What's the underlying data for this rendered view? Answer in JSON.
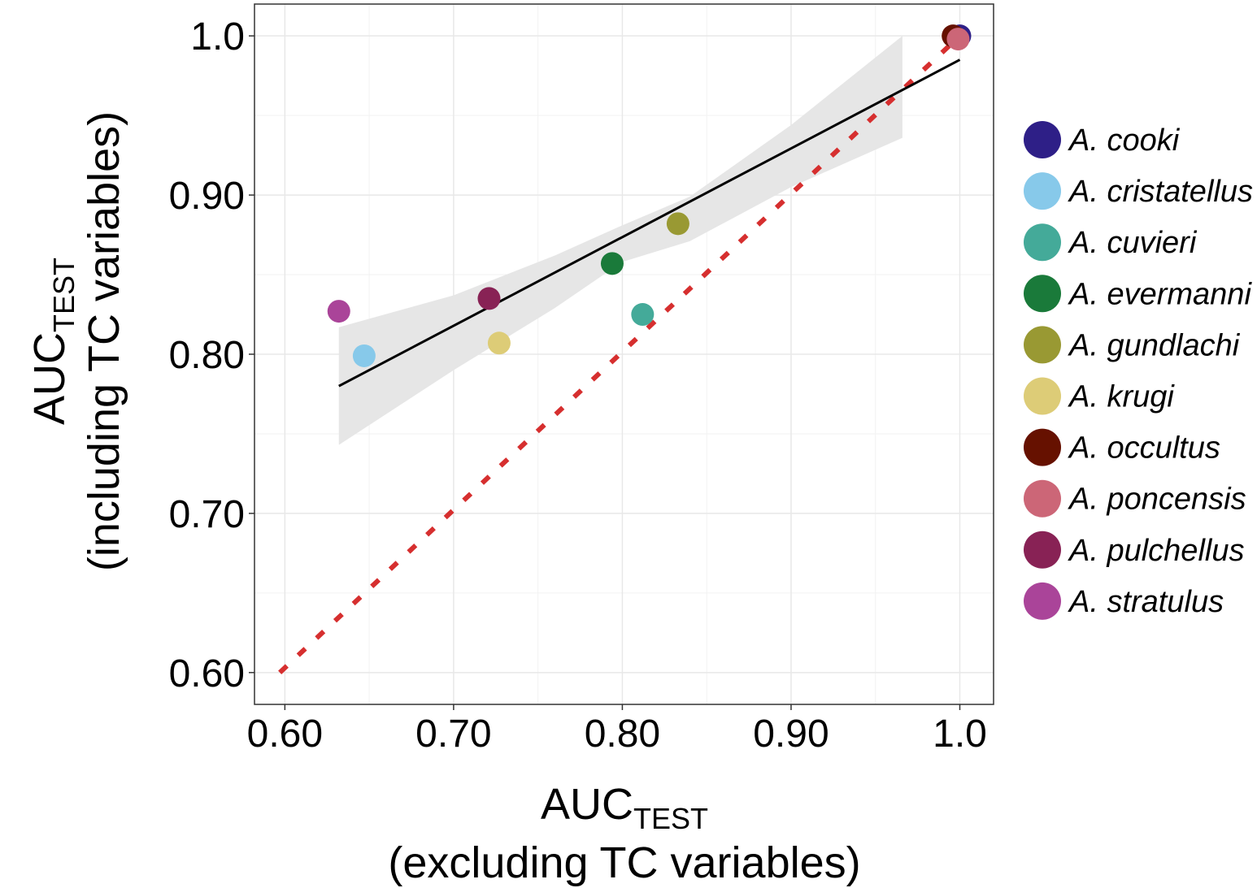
{
  "chart_data": {
    "type": "scatter",
    "xlabel": {
      "main": "AUC",
      "sub": "TEST",
      "line2": "(excluding TC variables)"
    },
    "ylabel": {
      "main": "AUC",
      "sub": "TEST",
      "line2": "(including TC variables)"
    },
    "xlim": [
      0.582,
      1.02
    ],
    "ylim": [
      0.58,
      1.02
    ],
    "x_ticks": [
      {
        "value": 0.6,
        "label": "0.60"
      },
      {
        "value": 0.7,
        "label": "0.70"
      },
      {
        "value": 0.8,
        "label": "0.80"
      },
      {
        "value": 0.9,
        "label": "0.90"
      },
      {
        "value": 1.0,
        "label": "1.0"
      }
    ],
    "y_ticks": [
      {
        "value": 0.6,
        "label": "0.60"
      },
      {
        "value": 0.7,
        "label": "0.70"
      },
      {
        "value": 0.8,
        "label": "0.80"
      },
      {
        "value": 0.9,
        "label": "0.90"
      },
      {
        "value": 1.0,
        "label": "1.0"
      }
    ],
    "grid": true,
    "legend_position": "right",
    "series": [
      {
        "name": "A. cooki",
        "color": "#2e1f87",
        "x": 1.0,
        "y": 1.0
      },
      {
        "name": "A. cristatellus",
        "color": "#87c9ea",
        "x": 0.647,
        "y": 0.799
      },
      {
        "name": "A. cuvieri",
        "color": "#44aa99",
        "x": 0.812,
        "y": 0.825
      },
      {
        "name": "A. evermanni",
        "color": "#1a7a3a",
        "x": 0.794,
        "y": 0.857
      },
      {
        "name": "A. gundlachi",
        "color": "#999933",
        "x": 0.833,
        "y": 0.882
      },
      {
        "name": "A. krugi",
        "color": "#ddcc77",
        "x": 0.727,
        "y": 0.807
      },
      {
        "name": "A. occultus",
        "color": "#661100",
        "x": 0.996,
        "y": 1.0
      },
      {
        "name": "A. poncensis",
        "color": "#cc6677",
        "x": 0.999,
        "y": 0.998
      },
      {
        "name": "A. pulchellus",
        "color": "#882255",
        "x": 0.721,
        "y": 0.835
      },
      {
        "name": "A. stratulus",
        "color": "#aa4499",
        "x": 0.632,
        "y": 0.827
      }
    ],
    "regression_line": {
      "x": [
        0.632,
        1.0
      ],
      "y": [
        0.78,
        0.985
      ],
      "color": "#000000"
    },
    "confidence_band": {
      "color": "#e6e6e6",
      "x": [
        0.632,
        0.7,
        0.76,
        0.8,
        0.84,
        0.9,
        0.966
      ],
      "upper": [
        0.817,
        0.837,
        0.862,
        0.881,
        0.899,
        0.944,
        1.0
      ],
      "lower": [
        0.743,
        0.79,
        0.829,
        0.858,
        0.871,
        0.905,
        0.936
      ]
    },
    "reference_line": {
      "x": [
        0.597,
        1.0
      ],
      "y": [
        0.6,
        1.0
      ],
      "color": "#d62f2f",
      "style": "dashed"
    }
  }
}
